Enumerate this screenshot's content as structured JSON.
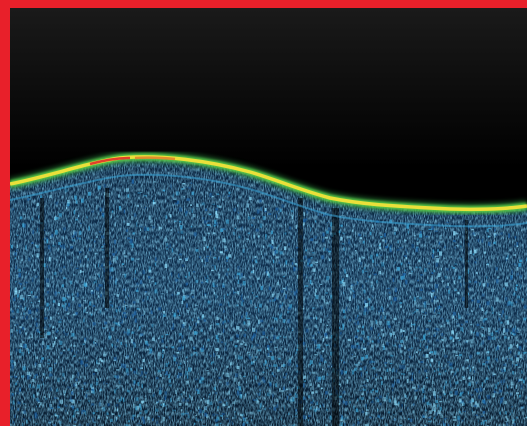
{
  "frame": {
    "border_color": "#e8202a"
  },
  "scan": {
    "type": "oct-cross-section",
    "palette": {
      "background": "#000000",
      "tissue_deep": "#1b5fa0",
      "tissue_mid": "#3aa6d8",
      "tissue_bright": "#8fe0ff",
      "surface_green": "#5fd24a",
      "surface_yellow": "#f2e23a",
      "surface_red": "#e0302a"
    }
  }
}
